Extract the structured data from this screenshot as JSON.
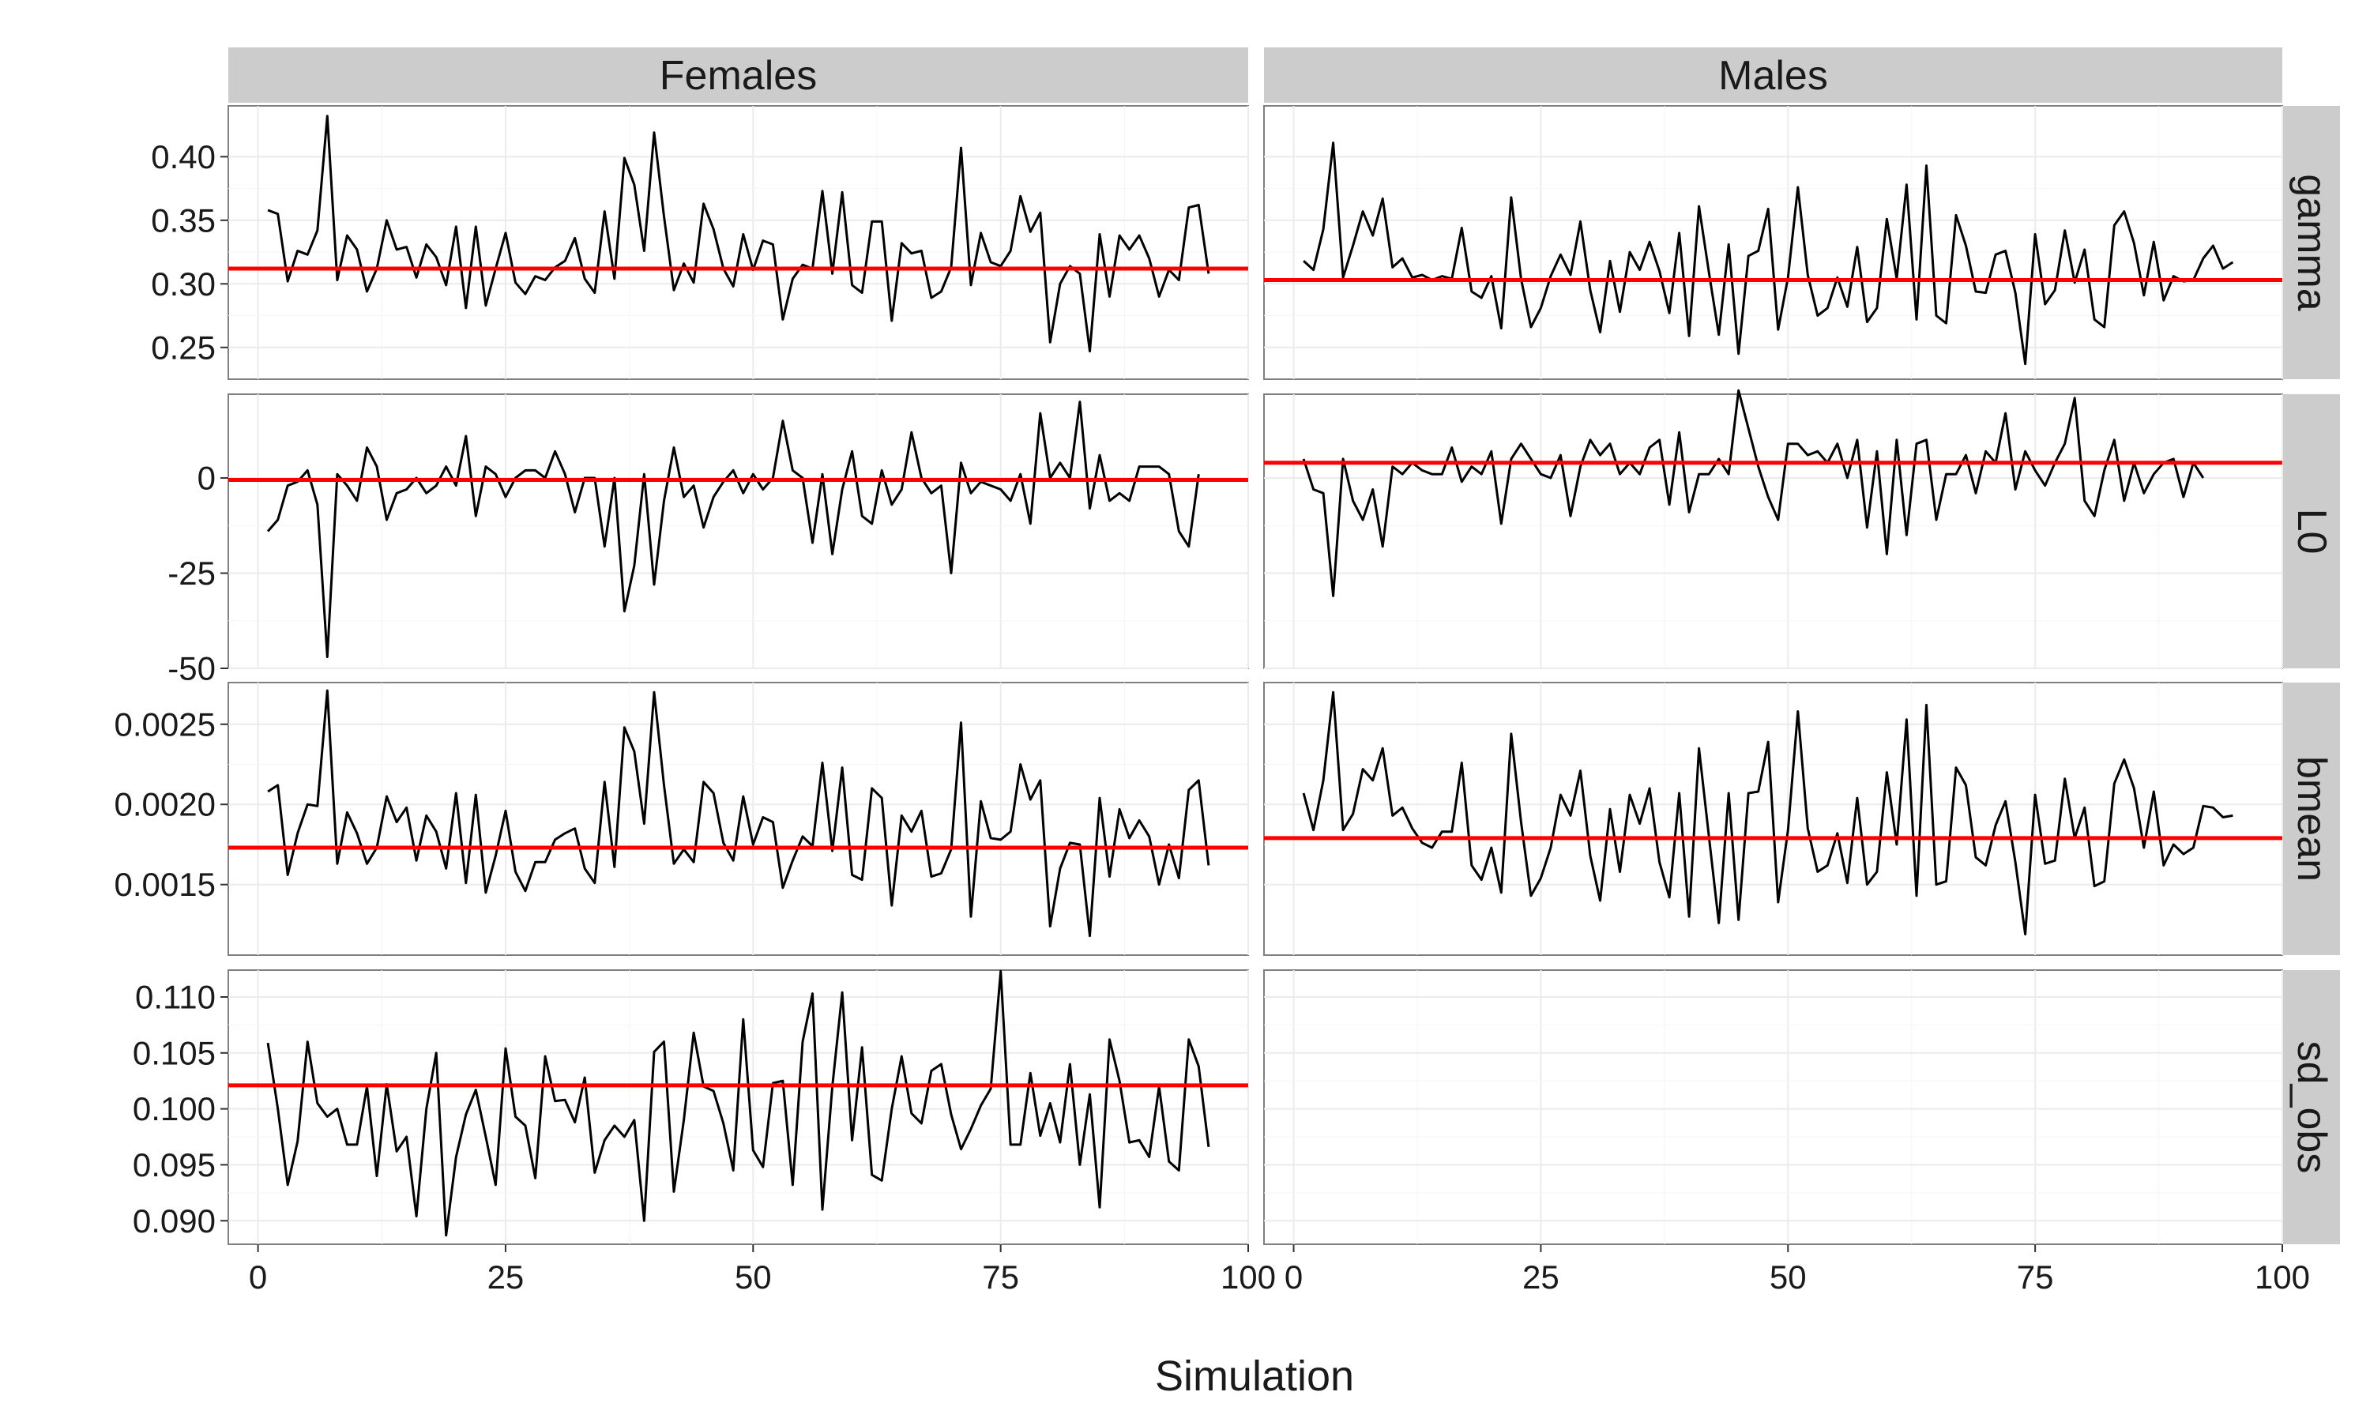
{
  "chart_data": {
    "type": "line",
    "layout": "facet-grid",
    "xlabel": "Simulation",
    "ylabel": "",
    "xlim": [
      -3,
      100
    ],
    "x_ticks": [
      0,
      25,
      50,
      75,
      100
    ],
    "x_tick_labels": [
      "0",
      "25",
      "50",
      "75",
      "100"
    ],
    "grid": true,
    "columns": [
      "Females",
      "Males"
    ],
    "rows": [
      {
        "name": "gamma",
        "ylim": [
          0.225,
          0.44
        ],
        "y_ticks": [
          0.25,
          0.3,
          0.35,
          0.4
        ],
        "y_tick_labels": [
          "0.25",
          "0.30",
          "0.35",
          "0.40"
        ],
        "reference": {
          "Females": 0.312,
          "Males": 0.303
        },
        "series": {
          "Females": [
            0.358,
            0.355,
            0.302,
            0.326,
            0.323,
            0.342,
            0.432,
            0.303,
            0.338,
            0.327,
            0.294,
            0.312,
            0.35,
            0.327,
            0.329,
            0.305,
            0.331,
            0.321,
            0.299,
            0.345,
            0.281,
            0.345,
            0.283,
            0.312,
            0.34,
            0.301,
            0.292,
            0.306,
            0.303,
            0.313,
            0.318,
            0.336,
            0.304,
            0.293,
            0.357,
            0.304,
            0.399,
            0.378,
            0.326,
            0.419,
            0.353,
            0.295,
            0.316,
            0.301,
            0.363,
            0.343,
            0.312,
            0.298,
            0.339,
            0.311,
            0.334,
            0.331,
            0.272,
            0.304,
            0.315,
            0.312,
            0.373,
            0.308,
            0.372,
            0.299,
            0.293,
            0.349,
            0.349,
            0.271,
            0.332,
            0.324,
            0.326,
            0.289,
            0.294,
            0.313,
            0.407,
            0.299,
            0.34,
            0.317,
            0.314,
            0.326,
            0.369,
            0.341,
            0.356,
            0.254,
            0.3,
            0.314,
            0.308,
            0.247,
            0.339,
            0.29,
            0.338,
            0.327,
            0.338,
            0.32,
            0.29,
            0.311,
            0.303,
            0.36,
            0.362,
            0.308
          ],
          "Males": [
            0.318,
            0.311,
            0.343,
            0.411,
            0.305,
            0.33,
            0.357,
            0.338,
            0.367,
            0.313,
            0.32,
            0.305,
            0.307,
            0.303,
            0.306,
            0.304,
            0.344,
            0.294,
            0.289,
            0.306,
            0.265,
            0.368,
            0.304,
            0.266,
            0.281,
            0.306,
            0.323,
            0.307,
            0.349,
            0.295,
            0.262,
            0.318,
            0.278,
            0.325,
            0.311,
            0.333,
            0.31,
            0.277,
            0.34,
            0.259,
            0.361,
            0.309,
            0.26,
            0.331,
            0.245,
            0.322,
            0.326,
            0.359,
            0.264,
            0.305,
            0.376,
            0.307,
            0.275,
            0.281,
            0.305,
            0.282,
            0.329,
            0.27,
            0.281,
            0.351,
            0.304,
            0.378,
            0.272,
            0.393,
            0.275,
            0.269,
            0.354,
            0.33,
            0.294,
            0.293,
            0.323,
            0.326,
            0.293,
            0.237,
            0.339,
            0.284,
            0.295,
            0.342,
            0.301,
            0.327,
            0.272,
            0.266,
            0.346,
            0.357,
            0.332,
            0.291,
            0.333,
            0.287,
            0.306,
            0.302,
            0.303,
            0.32,
            0.33,
            0.312,
            0.317
          ]
        }
      },
      {
        "name": "L0",
        "ylim": [
          -50,
          22
        ],
        "y_ticks": [
          -50,
          -25,
          0
        ],
        "y_tick_labels": [
          "-50",
          "-25",
          "0"
        ],
        "reference": {
          "Females": -0.5,
          "Males": 4
        },
        "series": {
          "Females": [
            -14,
            -11,
            -2,
            -1,
            2,
            -7,
            -47,
            1,
            -2,
            -6,
            8,
            3,
            -11,
            -4,
            -3,
            0,
            -4,
            -2,
            3,
            -2,
            11,
            -10,
            3,
            1,
            -5,
            0,
            2,
            2,
            0,
            7,
            1,
            -9,
            0,
            0,
            -18,
            0,
            -35,
            -23,
            1,
            -28,
            -6,
            8,
            -5,
            -2,
            -13,
            -5,
            -1,
            2,
            -4,
            1,
            -3,
            0,
            15,
            2,
            0,
            -17,
            1,
            -20,
            -3,
            7,
            -10,
            -12,
            2,
            -7,
            -3,
            12,
            0,
            -4,
            -2,
            -25,
            4,
            -4,
            -1,
            -2,
            -3,
            -6,
            1,
            -12,
            17,
            0,
            4,
            0,
            20,
            -8,
            6,
            -6,
            -4,
            -6,
            3,
            3,
            3,
            1,
            -14,
            -18,
            1
          ],
          "Males": [
            5,
            -3,
            -4,
            -31,
            5,
            -6,
            -11,
            -3,
            -18,
            3,
            1,
            4,
            2,
            1,
            1,
            8,
            -1,
            3,
            1,
            7,
            -12,
            5,
            9,
            5,
            1,
            0,
            6,
            -10,
            3,
            10,
            6,
            9,
            1,
            4,
            1,
            8,
            10,
            -7,
            12,
            -9,
            1,
            1,
            5,
            1,
            23,
            13,
            3,
            -5,
            -11,
            9,
            9,
            6,
            7,
            4,
            9,
            0,
            10,
            -13,
            7,
            -20,
            10,
            -15,
            9,
            10,
            -11,
            1,
            1,
            6,
            -4,
            7,
            4,
            17,
            -3,
            7,
            2,
            -2,
            4,
            9,
            21,
            -6,
            -10,
            2,
            10,
            -6,
            4,
            -4,
            1,
            4,
            5,
            -5,
            4,
            0
          ]
        }
      },
      {
        "name": "bmean",
        "ylim": [
          0.00106,
          0.00276
        ],
        "y_ticks": [
          0.0015,
          0.002,
          0.0025
        ],
        "y_tick_labels": [
          "0.0015",
          "0.0020",
          "0.0025"
        ],
        "reference": {
          "Females": 0.00173,
          "Males": 0.00179
        },
        "series": {
          "Females": [
            0.00208,
            0.00212,
            0.00156,
            0.00182,
            0.002,
            0.00199,
            0.00271,
            0.00163,
            0.00195,
            0.00182,
            0.00163,
            0.00173,
            0.00205,
            0.00189,
            0.00198,
            0.00165,
            0.00193,
            0.00183,
            0.0016,
            0.00207,
            0.00151,
            0.00206,
            0.00145,
            0.00168,
            0.00196,
            0.00158,
            0.00146,
            0.00164,
            0.00164,
            0.00178,
            0.00182,
            0.00185,
            0.0016,
            0.00151,
            0.00214,
            0.00161,
            0.00248,
            0.00233,
            0.00188,
            0.0027,
            0.00212,
            0.00163,
            0.00172,
            0.00164,
            0.00214,
            0.00207,
            0.00176,
            0.00165,
            0.00205,
            0.00175,
            0.00192,
            0.00189,
            0.00148,
            0.00165,
            0.0018,
            0.00174,
            0.00226,
            0.00171,
            0.00223,
            0.00156,
            0.00153,
            0.0021,
            0.00204,
            0.00137,
            0.00193,
            0.00183,
            0.00196,
            0.00155,
            0.00157,
            0.00172,
            0.00251,
            0.0013,
            0.00202,
            0.00179,
            0.00178,
            0.00183,
            0.00225,
            0.00203,
            0.00215,
            0.00124,
            0.0016,
            0.00176,
            0.00175,
            0.00118,
            0.00204,
            0.00155,
            0.00197,
            0.00179,
            0.0019,
            0.0018,
            0.0015,
            0.00175,
            0.00154,
            0.00209,
            0.00215,
            0.00162
          ],
          "Males": [
            0.00207,
            0.00184,
            0.00215,
            0.0027,
            0.00184,
            0.00194,
            0.00222,
            0.00215,
            0.00235,
            0.00193,
            0.00198,
            0.00185,
            0.00176,
            0.00173,
            0.00183,
            0.00183,
            0.00226,
            0.00162,
            0.00153,
            0.00173,
            0.00145,
            0.00244,
            0.00189,
            0.00143,
            0.00154,
            0.00173,
            0.00206,
            0.00193,
            0.00221,
            0.00168,
            0.0014,
            0.00197,
            0.00158,
            0.00206,
            0.00188,
            0.0021,
            0.00164,
            0.00142,
            0.00207,
            0.0013,
            0.00235,
            0.0018,
            0.00126,
            0.00207,
            0.00128,
            0.00207,
            0.00208,
            0.00239,
            0.00139,
            0.00184,
            0.00258,
            0.00185,
            0.00158,
            0.00162,
            0.00182,
            0.00151,
            0.00204,
            0.0015,
            0.00158,
            0.0022,
            0.00175,
            0.00253,
            0.00143,
            0.00262,
            0.0015,
            0.00152,
            0.00223,
            0.00212,
            0.00167,
            0.00162,
            0.00187,
            0.00202,
            0.00164,
            0.00119,
            0.00206,
            0.00163,
            0.00165,
            0.00216,
            0.00179,
            0.00198,
            0.00149,
            0.00152,
            0.00213,
            0.00228,
            0.0021,
            0.00173,
            0.00208,
            0.00162,
            0.00175,
            0.00169,
            0.00173,
            0.00199,
            0.00198,
            0.00192,
            0.00193
          ]
        }
      },
      {
        "name": "sd_obs",
        "ylim": [
          0.0879,
          0.1124
        ],
        "y_ticks": [
          0.09,
          0.095,
          0.1,
          0.105,
          0.11
        ],
        "y_tick_labels": [
          "0.090",
          "0.095",
          "0.100",
          "0.105",
          "0.110"
        ],
        "reference": {
          "Females": 0.1021,
          "Males": null
        },
        "series": {
          "Females": [
            0.1059,
            0.1,
            0.0932,
            0.0971,
            0.106,
            0.1005,
            0.0993,
            0.1,
            0.0968,
            0.0968,
            0.102,
            0.094,
            0.1022,
            0.0962,
            0.0975,
            0.0904,
            0.1,
            0.105,
            0.0887,
            0.0957,
            0.0995,
            0.1017,
            0.0975,
            0.0932,
            0.1054,
            0.0993,
            0.0985,
            0.0938,
            0.1047,
            0.1007,
            0.1008,
            0.0988,
            0.1028,
            0.0943,
            0.0972,
            0.0985,
            0.0975,
            0.099,
            0.09,
            0.1051,
            0.106,
            0.0926,
            0.099,
            0.1068,
            0.102,
            0.1016,
            0.0987,
            0.0945,
            0.108,
            0.0963,
            0.0948,
            0.1023,
            0.1025,
            0.0932,
            0.106,
            0.1103,
            0.091,
            0.102,
            0.1104,
            0.0972,
            0.1055,
            0.0941,
            0.0936,
            0.1,
            0.1047,
            0.0996,
            0.0987,
            0.1034,
            0.104,
            0.0995,
            0.0964,
            0.0982,
            0.1003,
            0.1018,
            0.1123,
            0.0968,
            0.0968,
            0.1032,
            0.0976,
            0.1005,
            0.097,
            0.104,
            0.095,
            0.1013,
            0.0912,
            0.1062,
            0.1025,
            0.097,
            0.0972,
            0.0957,
            0.102,
            0.0953,
            0.0945,
            0.1062,
            0.1038,
            0.0966
          ],
          "Males": []
        }
      }
    ]
  }
}
